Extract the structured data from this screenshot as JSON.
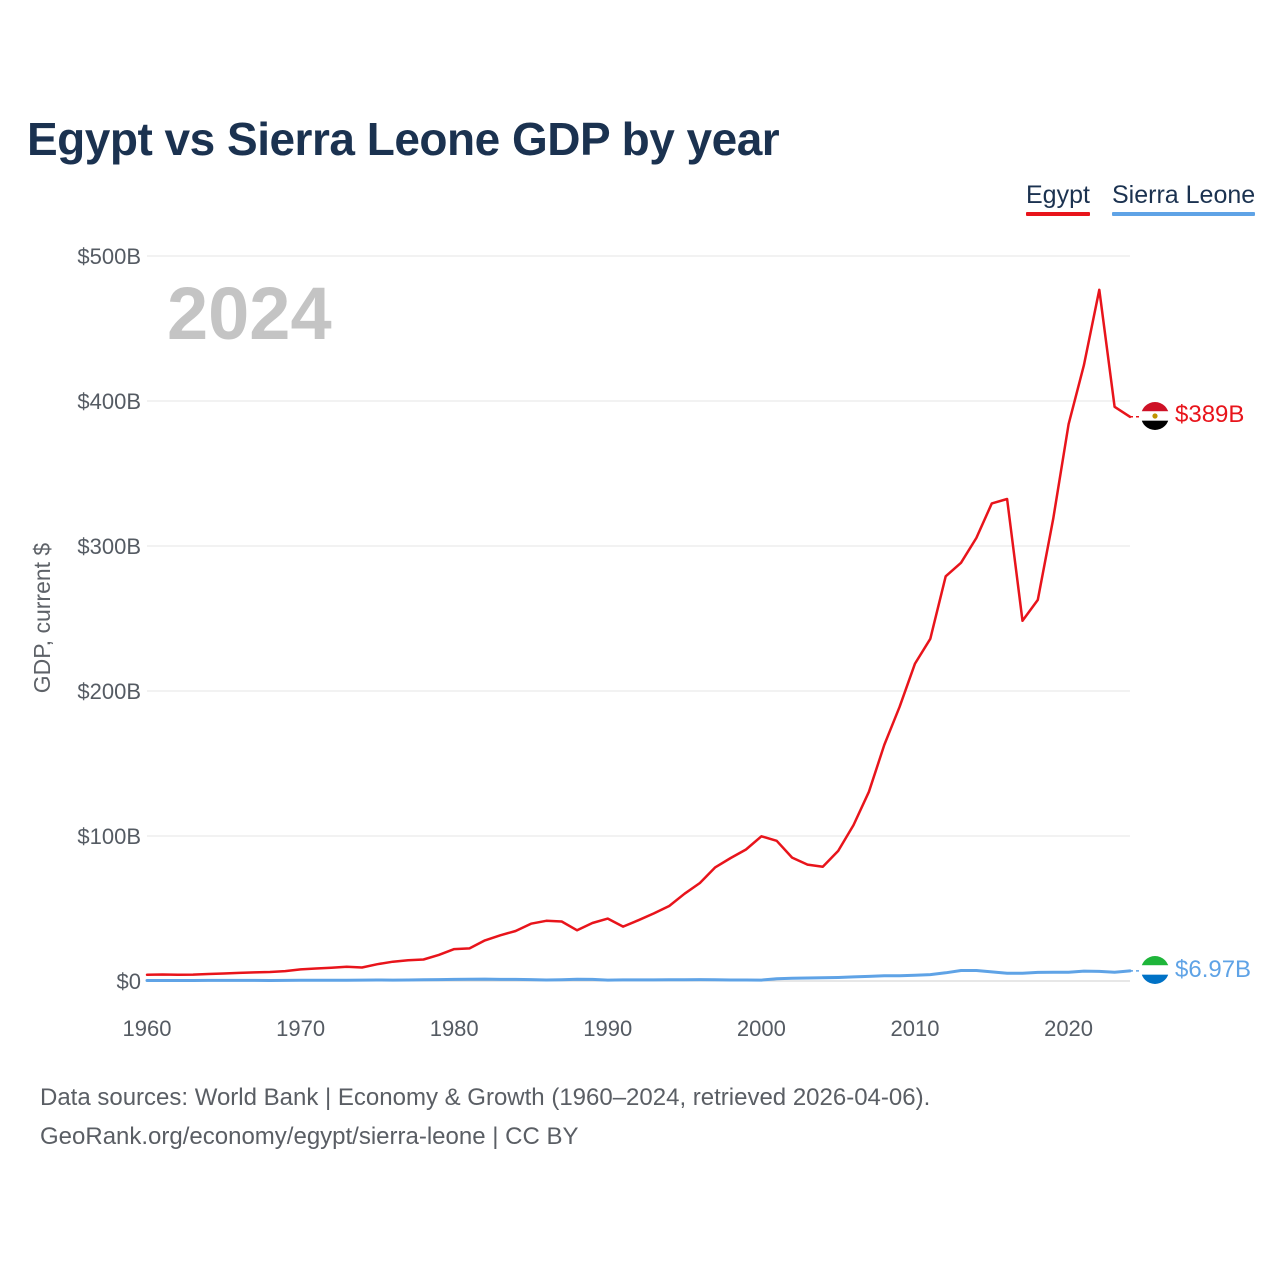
{
  "chart_data": {
    "type": "line",
    "title": "Egypt vs Sierra Leone GDP by year",
    "ylabel": "GDP, current $",
    "xlabel": "",
    "xlim": [
      1960,
      2024
    ],
    "ylim": [
      0,
      500
    ],
    "y_ticks": [
      {
        "value": 0,
        "label": "$0"
      },
      {
        "value": 100,
        "label": "$100B"
      },
      {
        "value": 200,
        "label": "$200B"
      },
      {
        "value": 300,
        "label": "$300B"
      },
      {
        "value": 400,
        "label": "$400B"
      },
      {
        "value": 500,
        "label": "$500B"
      }
    ],
    "x_ticks": [
      {
        "value": 1960,
        "label": "1960"
      },
      {
        "value": 1970,
        "label": "1970"
      },
      {
        "value": 1980,
        "label": "1980"
      },
      {
        "value": 1990,
        "label": "1990"
      },
      {
        "value": 2000,
        "label": "2000"
      },
      {
        "value": 2010,
        "label": "2010"
      },
      {
        "value": 2020,
        "label": "2020"
      }
    ],
    "grid": true,
    "legend_position": "top-right",
    "current_year_label": "2024",
    "series": [
      {
        "name": "Egypt",
        "color": "#e8141b",
        "end_label": "$389B",
        "flag": "egypt",
        "x": [
          1960,
          1961,
          1962,
          1963,
          1964,
          1965,
          1966,
          1967,
          1968,
          1969,
          1970,
          1971,
          1972,
          1973,
          1974,
          1975,
          1976,
          1977,
          1978,
          1979,
          1980,
          1981,
          1982,
          1983,
          1984,
          1985,
          1986,
          1987,
          1988,
          1989,
          1990,
          1991,
          1992,
          1993,
          1994,
          1995,
          1996,
          1997,
          1998,
          1999,
          2000,
          2001,
          2002,
          2003,
          2004,
          2005,
          2006,
          2007,
          2008,
          2009,
          2010,
          2011,
          2012,
          2013,
          2014,
          2015,
          2016,
          2017,
          2018,
          2019,
          2020,
          2021,
          2022,
          2023,
          2024
        ],
        "values": [
          4.3,
          4.5,
          4.3,
          4.4,
          4.8,
          5.2,
          5.6,
          5.9,
          6.2,
          6.8,
          8.0,
          8.6,
          9.1,
          9.8,
          9.3,
          11.6,
          13.3,
          14.3,
          14.8,
          18.0,
          22.0,
          22.5,
          28.0,
          31.5,
          34.5,
          39.5,
          41.5,
          41.0,
          35.0,
          40.0,
          43.0,
          37.5,
          41.9,
          46.6,
          51.7,
          60.2,
          67.6,
          78.4,
          84.8,
          90.7,
          99.8,
          96.7,
          85.1,
          80.3,
          78.8,
          89.7,
          107.5,
          130.5,
          162.8,
          189.1,
          218.9,
          236.0,
          279.1,
          288.4,
          305.6,
          329.4,
          332.4,
          248.4,
          262.8,
          318.7,
          384.0,
          424.7,
          476.7,
          396.0,
          389.1
        ]
      },
      {
        "name": "Sierra Leone",
        "color": "#5fa3e6",
        "end_label": "$6.97B",
        "flag": "sierra-leone",
        "x": [
          1960,
          1961,
          1962,
          1963,
          1964,
          1965,
          1966,
          1967,
          1968,
          1969,
          1970,
          1971,
          1972,
          1973,
          1974,
          1975,
          1976,
          1977,
          1978,
          1979,
          1980,
          1981,
          1982,
          1983,
          1984,
          1985,
          1986,
          1987,
          1988,
          1989,
          1990,
          1991,
          1992,
          1993,
          1994,
          1995,
          1996,
          1997,
          1998,
          1999,
          2000,
          2001,
          2002,
          2003,
          2004,
          2005,
          2006,
          2007,
          2008,
          2009,
          2010,
          2011,
          2012,
          2013,
          2014,
          2015,
          2016,
          2017,
          2018,
          2019,
          2020,
          2021,
          2022,
          2023,
          2024
        ],
        "values": [
          0.32,
          0.33,
          0.35,
          0.36,
          0.39,
          0.42,
          0.44,
          0.41,
          0.37,
          0.42,
          0.46,
          0.45,
          0.48,
          0.58,
          0.62,
          0.66,
          0.61,
          0.7,
          0.83,
          0.97,
          1.1,
          1.16,
          1.3,
          1.1,
          1.1,
          0.95,
          0.7,
          0.85,
          1.2,
          1.1,
          0.65,
          0.78,
          0.73,
          0.77,
          0.9,
          0.87,
          0.94,
          0.85,
          0.67,
          0.67,
          0.64,
          1.58,
          1.87,
          2.07,
          2.19,
          2.4,
          2.85,
          3.18,
          3.68,
          3.6,
          3.91,
          4.4,
          5.66,
          7.27,
          7.27,
          6.3,
          5.4,
          5.3,
          5.95,
          6.1,
          6.06,
          6.8,
          6.6,
          6.1,
          6.97
        ]
      }
    ]
  },
  "source": {
    "line1": "Data sources: World Bank | Economy & Growth (1960–2024, retrieved 2026-04-06).",
    "line2": "GeoRank.org/economy/egypt/sierra-leone | CC BY"
  }
}
